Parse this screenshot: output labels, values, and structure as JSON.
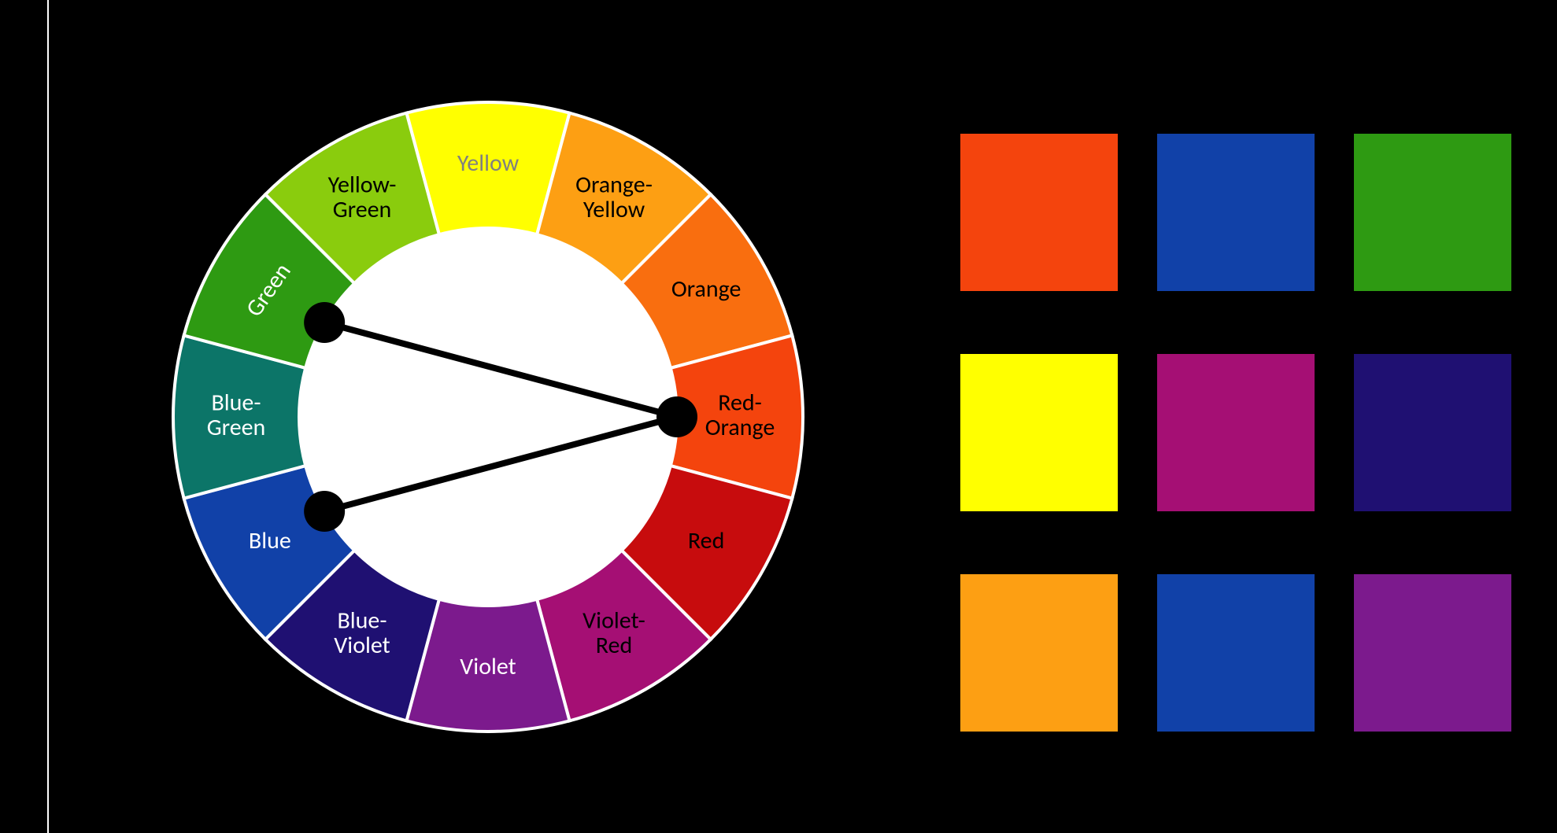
{
  "background_color": "#000000",
  "wheel": {
    "outer_radius": 400,
    "inner_radius": 240,
    "center_fill": "#ffffff",
    "stroke_color": "#ffffff",
    "stroke_width": 4,
    "segments": [
      {
        "label": "Yellow",
        "color": "#ffff00",
        "text_color": "#808080"
      },
      {
        "label": "Orange-\nYellow",
        "color": "#fd9f13",
        "text_color": "#000000"
      },
      {
        "label": "Orange",
        "color": "#f96e0f",
        "text_color": "#000000"
      },
      {
        "label": "Red-\nOrange",
        "color": "#f4440d",
        "text_color": "#000000"
      },
      {
        "label": "Red",
        "color": "#c70c0d",
        "text_color": "#000000"
      },
      {
        "label": "Violet-\nRed",
        "color": "#a50f74",
        "text_color": "#000000"
      },
      {
        "label": "Violet",
        "color": "#7c1a8d",
        "text_color": "#ffffff"
      },
      {
        "label": "Blue-\nViolet",
        "color": "#1f1072",
        "text_color": "#ffffff"
      },
      {
        "label": "Blue",
        "color": "#1141a8",
        "text_color": "#ffffff"
      },
      {
        "label": "Blue-\nGreen",
        "color": "#0c7568",
        "text_color": "#ffffff"
      },
      {
        "label": "Green",
        "color": "#2e9a12",
        "text_color": "#ffffff"
      },
      {
        "label": "Yellow-\nGreen",
        "color": "#8acc0d",
        "text_color": "#000000"
      }
    ],
    "start_angle_deg": -105,
    "label_fontsize": 30,
    "selection": {
      "node_indices": [
        3,
        8,
        10
      ],
      "node_radius_on_inner": true,
      "node_color": "#000000",
      "node_radius": 26,
      "line_color": "#000000",
      "line_width": 8,
      "lines": [
        [
          10,
          3
        ],
        [
          8,
          3
        ]
      ]
    }
  },
  "palettes": {
    "swatch_size": 200,
    "row_gap": 80,
    "col_gap": 50,
    "rows": [
      [
        "#f4440d",
        "#1141a8",
        "#2e9a12"
      ],
      [
        "#ffff00",
        "#a50f74",
        "#1f1072"
      ],
      [
        "#fd9f13",
        "#1141a8",
        "#7c1a8d"
      ]
    ]
  }
}
